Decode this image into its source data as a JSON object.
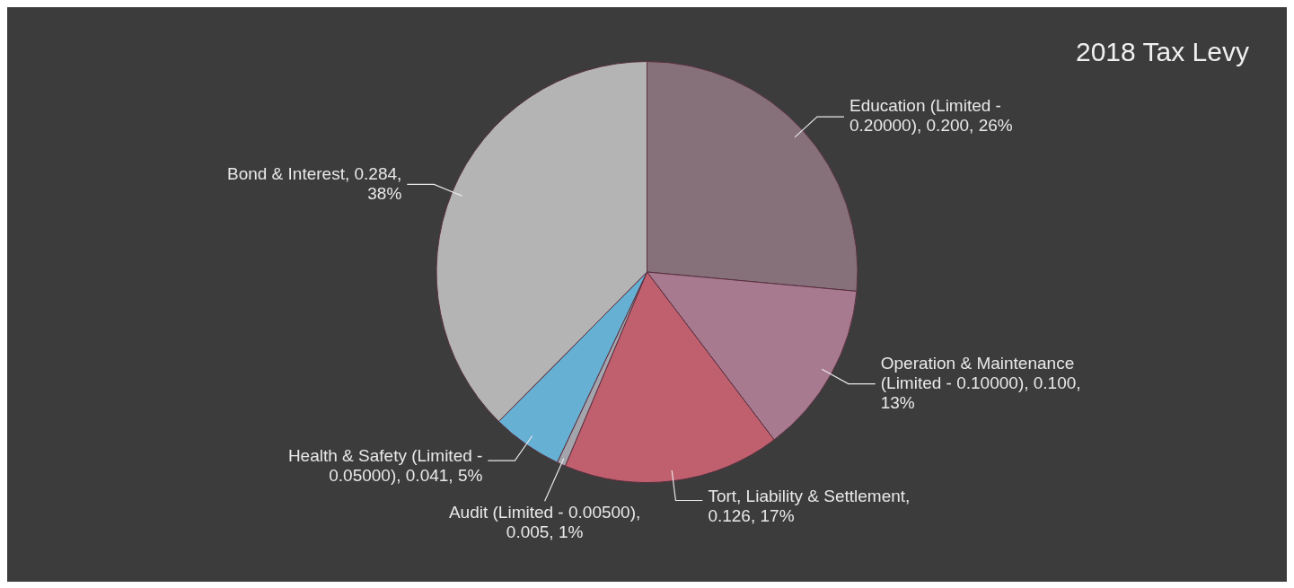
{
  "chart_data": {
    "type": "pie",
    "title": "2018 Tax Levy",
    "categories": [
      "Education (Limited - 0.20000), 0.200, 26%",
      "Operation & Maintenance (Limited - 0.10000), 0.100, 13%",
      "Tort, Liability & Settlement, 0.126, 17%",
      "Audit (Limited - 0.00500), 0.005, 1%",
      "Health & Safety (Limited - 0.05000), 0.041, 5%",
      "Bond & Interest, 0.284, 38%"
    ],
    "values": [
      0.2,
      0.1,
      0.126,
      0.005,
      0.041,
      0.284
    ],
    "colors": [
      "#86707a",
      "#a87a90",
      "#c0606e",
      "#a4a4ac",
      "#66b0d4",
      "#b4b4b4"
    ],
    "legend": false
  }
}
